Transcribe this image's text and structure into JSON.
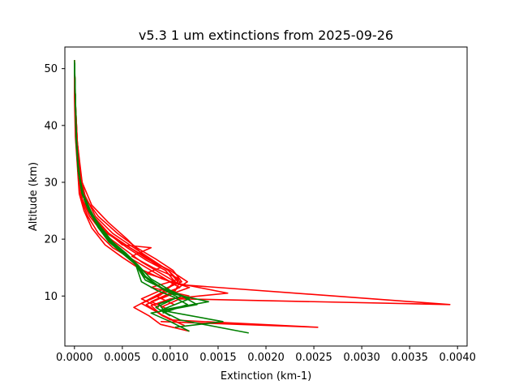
{
  "chart_data": {
    "type": "line",
    "title": "v5.3 1 um extinctions from 2025-09-26",
    "xlabel": "Extinction (km-1)",
    "ylabel": "Altitude (km)",
    "xlim": [
      -0.0001,
      0.0041
    ],
    "ylim": [
      1.2,
      53.8
    ],
    "xticks": [
      0.0,
      0.0005,
      0.001,
      0.0015,
      0.002,
      0.0025,
      0.003,
      0.0035,
      0.004
    ],
    "xtick_labels": [
      "0.0000",
      "0.0005",
      "0.0010",
      "0.0015",
      "0.0020",
      "0.0025",
      "0.0030",
      "0.0035",
      "0.0040"
    ],
    "yticks": [
      10,
      20,
      30,
      40,
      50
    ],
    "ytick_labels": [
      "10",
      "20",
      "30",
      "40",
      "50"
    ],
    "grid": false,
    "legend": "none",
    "colors": {
      "red": "#ff0000",
      "green": "#008000"
    },
    "series": [
      {
        "color": "red",
        "x": [
          0.0,
          0.0,
          1e-05,
          3e-05,
          5e-05,
          0.0001,
          0.00018,
          0.00032,
          0.0005,
          0.00068,
          0.00092,
          0.0012,
          0.00095,
          0.00075,
          0.00092,
          0.00115
        ],
        "y": [
          51.5,
          45,
          38,
          33,
          28,
          25,
          22,
          19,
          16.8,
          14.8,
          13,
          11.5,
          10,
          8.5,
          6.5,
          4.8
        ]
      },
      {
        "color": "red",
        "x": [
          0.0,
          1e-05,
          2e-05,
          4e-05,
          7e-05,
          0.00014,
          0.00025,
          0.0004,
          0.0006,
          0.0008,
          0.001,
          0.0016,
          0.001,
          0.0008,
          0.0009,
          0.0011
        ],
        "y": [
          51,
          44,
          37,
          32,
          27,
          24,
          21,
          18.5,
          16.5,
          14.5,
          12.5,
          10.5,
          9.5,
          8.3,
          6.8,
          5.2
        ]
      },
      {
        "color": "red",
        "x": [
          0.0,
          1e-05,
          2e-05,
          4e-05,
          8e-05,
          0.00016,
          0.0003,
          0.0005,
          0.0007,
          0.0009,
          0.0011,
          0.00392,
          0.0011,
          0.0009
        ],
        "y": [
          51,
          44,
          37,
          32,
          27,
          24,
          21,
          18.5,
          16,
          14,
          12,
          8.5,
          9.5,
          8
        ]
      },
      {
        "color": "red",
        "x": [
          0.0,
          1e-05,
          2e-05,
          5e-05,
          0.0001,
          0.0002,
          0.00035,
          0.00055,
          0.00075,
          0.00095,
          0.00105,
          0.0009,
          0.0007,
          0.00085,
          0.001,
          0.00254,
          0.0009
        ],
        "y": [
          51,
          44,
          37,
          32,
          27,
          24,
          21,
          18.5,
          16.3,
          14.5,
          12.5,
          10.2,
          8.7,
          7.3,
          5.8,
          4.5,
          5.5
        ]
      },
      {
        "color": "red",
        "x": [
          0.0,
          1e-05,
          3e-05,
          6e-05,
          0.0001,
          0.0002,
          0.00036,
          0.00058,
          0.00078,
          0.00098,
          0.00108,
          0.0009,
          0.00062,
          0.00078,
          0.0009,
          0.0012
        ],
        "y": [
          51,
          44,
          37,
          32,
          27,
          24,
          21,
          18.5,
          16.5,
          14.5,
          12.5,
          10.5,
          8.0,
          6.5,
          5.0,
          3.8
        ]
      },
      {
        "color": "red",
        "x": [
          0.0,
          1e-05,
          2e-05,
          4e-05,
          8e-05,
          0.00018,
          0.00036,
          0.0005,
          0.0008,
          0.0006,
          0.00082,
          0.0011,
          0.0008,
          0.0012
        ],
        "y": [
          51.5,
          44,
          37,
          32,
          27,
          24,
          21,
          19,
          18.5,
          17,
          15,
          13,
          11.5,
          10
        ]
      },
      {
        "color": "red",
        "x": [
          0.0,
          1e-05,
          2e-05,
          4e-05,
          8e-05,
          0.00018,
          0.00034,
          0.00058,
          0.00076,
          0.001,
          0.00118,
          0.001,
          0.0008,
          0.001
        ],
        "y": [
          51,
          44,
          37,
          32,
          27,
          24,
          21,
          18.5,
          16.5,
          14.5,
          12.5,
          10.5,
          9.0,
          7.5
        ]
      },
      {
        "color": "red",
        "x": [
          0.0,
          1e-05,
          2e-05,
          5e-05,
          0.00012,
          0.00025,
          0.00045,
          0.00065,
          0.00085,
          0.00103,
          0.00112,
          0.0009,
          0.0007,
          0.00088
        ],
        "y": [
          51,
          44,
          37,
          32,
          27,
          24,
          21,
          18.5,
          16.5,
          14.5,
          12.5,
          11,
          9.5,
          8
        ]
      },
      {
        "color": "red",
        "x": [
          0.0,
          1e-05,
          3e-05,
          8e-05,
          0.00018,
          0.00035,
          0.00055,
          0.00073,
          0.0009,
          0.00075,
          0.00094,
          0.0011,
          0.00085,
          0.00104
        ],
        "y": [
          51,
          44,
          37,
          30,
          26,
          23,
          20,
          17,
          15,
          14,
          13,
          11.5,
          10,
          8.5
        ]
      },
      {
        "color": "red",
        "x": [
          0.0,
          1e-05,
          3e-05,
          6e-05,
          0.0001,
          0.00022,
          0.0004,
          0.00062,
          0.0008,
          0.00098,
          0.0011,
          0.00104,
          0.0009
        ],
        "y": [
          51,
          44,
          37,
          32,
          28,
          24,
          21,
          18.5,
          16.5,
          14.5,
          12.5,
          10.5,
          9.5
        ]
      },
      {
        "color": "green",
        "x": [
          0.0,
          1e-05,
          2e-05,
          4e-05,
          8e-05,
          0.00015,
          0.00025,
          0.00036,
          0.0005,
          0.00064,
          0.00074,
          0.0009,
          0.0011,
          0.00128,
          0.0008,
          0.001,
          0.0012
        ],
        "y": [
          51.5,
          45,
          38,
          33,
          28,
          25,
          22,
          19.5,
          17.5,
          15.5,
          13.5,
          11.5,
          10.2,
          8.5,
          7.0,
          5.5,
          3.8
        ]
      },
      {
        "color": "green",
        "x": [
          0.0,
          1e-05,
          2e-05,
          4e-05,
          9e-05,
          0.00016,
          0.00026,
          0.00038,
          0.00052,
          0.00066,
          0.0008,
          0.001,
          0.0012,
          0.0009,
          0.0011,
          0.00182
        ],
        "y": [
          51,
          44,
          37,
          32,
          28,
          25,
          22,
          19.5,
          17.5,
          15.5,
          13,
          11,
          9.5,
          7.5,
          5.8,
          3.5
        ]
      },
      {
        "color": "green",
        "x": [
          0.0,
          1e-05,
          2e-05,
          4e-05,
          8e-05,
          0.00015,
          0.00025,
          0.00037,
          0.00052,
          0.00065,
          0.00072,
          0.00088,
          0.001,
          0.0014,
          0.0009,
          0.00155,
          0.00105
        ],
        "y": [
          51,
          44,
          37,
          32,
          28,
          25,
          22,
          19.5,
          17.5,
          15.5,
          13.5,
          11.8,
          10.5,
          9.0,
          7.5,
          5.5,
          4.5
        ]
      },
      {
        "color": "green",
        "x": [
          0.0,
          1e-05,
          2e-05,
          4e-05,
          8e-05,
          0.00016,
          0.00028,
          0.0004,
          0.00054,
          0.00066,
          0.00076,
          0.00092,
          0.00108,
          0.00085,
          0.001
        ],
        "y": [
          51,
          44,
          37,
          32,
          28,
          25,
          22,
          19.5,
          17.5,
          15.5,
          13,
          11.2,
          9.8,
          8.0,
          6.5
        ]
      },
      {
        "color": "green",
        "x": [
          0.0,
          1e-05,
          2e-05,
          4e-05,
          9e-05,
          0.00017,
          0.00027,
          0.00039,
          0.00053,
          0.00064,
          0.00074,
          0.00094,
          0.00112,
          0.00088,
          0.00095
        ],
        "y": [
          51,
          44,
          37,
          32,
          28,
          25,
          22,
          19.5,
          17.5,
          15.5,
          12.8,
          11.2,
          10,
          8.6,
          7.2
        ]
      },
      {
        "color": "green",
        "x": [
          0.0,
          1e-05,
          2e-05,
          4e-05,
          8e-05,
          0.00015,
          0.00026,
          0.00038,
          0.00052,
          0.00064,
          0.0007,
          0.00086,
          0.00104,
          0.00118,
          0.00092
        ],
        "y": [
          51,
          44,
          37,
          32,
          28,
          25,
          22,
          19.5,
          17.5,
          15.5,
          12.5,
          11.0,
          9.8,
          8.5,
          7.0
        ]
      }
    ]
  }
}
